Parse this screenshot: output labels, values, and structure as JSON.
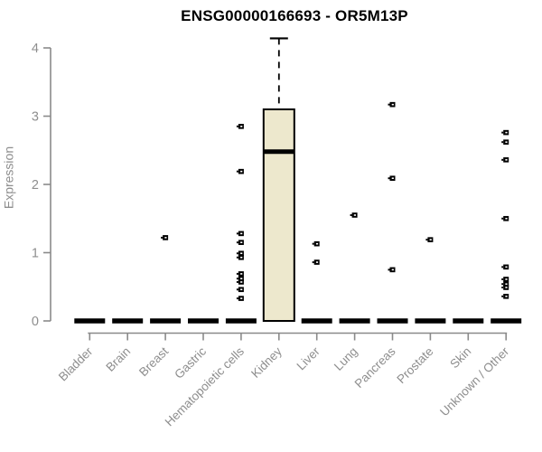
{
  "chart_data": {
    "type": "boxplot",
    "title": "ENSG00000166693 - OR5M13P",
    "xlabel": "",
    "ylabel": "Expression",
    "ylim": [
      0,
      4
    ],
    "yticks": [
      0,
      1,
      2,
      3,
      4
    ],
    "grid": false,
    "legend": "none",
    "colors": {
      "box_fill": "#EDE8CD",
      "box_line": "#000000",
      "axis": "#8A8A8A",
      "tick_label": "#8E8E8E",
      "title": "#000000",
      "background": "#FFFFFF"
    },
    "categories": [
      "Bladder",
      "Brain",
      "Breast",
      "Gastric",
      "Hematopoietic cells",
      "Kidney",
      "Liver",
      "Lung",
      "Pancreas",
      "Prostate",
      "Skin",
      "Unknown / Other"
    ],
    "series": [
      {
        "category": "Bladder",
        "q1": 0,
        "median": 0,
        "q3": 0,
        "whisker_low": 0,
        "whisker_high": 0,
        "outliers": []
      },
      {
        "category": "Brain",
        "q1": 0,
        "median": 0,
        "q3": 0,
        "whisker_low": 0,
        "whisker_high": 0,
        "outliers": []
      },
      {
        "category": "Breast",
        "q1": 0,
        "median": 0,
        "q3": 0,
        "whisker_low": 0,
        "whisker_high": 0,
        "outliers": [
          1.22
        ]
      },
      {
        "category": "Gastric",
        "q1": 0,
        "median": 0,
        "q3": 0,
        "whisker_low": 0,
        "whisker_high": 0,
        "outliers": []
      },
      {
        "category": "Hematopoietic cells",
        "q1": 0,
        "median": 0,
        "q3": 0,
        "whisker_low": 0,
        "whisker_high": 0,
        "outliers": [
          2.85,
          2.19,
          1.28,
          1.15,
          0.99,
          0.93,
          0.69,
          0.62,
          0.57,
          0.46,
          0.33
        ]
      },
      {
        "category": "Kidney",
        "q1": 0,
        "median": 2.48,
        "q3": 3.1,
        "whisker_low": 0,
        "whisker_high": 4.14,
        "outliers": []
      },
      {
        "category": "Liver",
        "q1": 0,
        "median": 0,
        "q3": 0,
        "whisker_low": 0,
        "whisker_high": 0,
        "outliers": [
          1.13,
          0.86
        ]
      },
      {
        "category": "Lung",
        "q1": 0,
        "median": 0,
        "q3": 0,
        "whisker_low": 0,
        "whisker_high": 0,
        "outliers": [
          1.55
        ]
      },
      {
        "category": "Pancreas",
        "q1": 0,
        "median": 0,
        "q3": 0,
        "whisker_low": 0,
        "whisker_high": 0,
        "outliers": [
          3.17,
          2.09,
          0.75
        ]
      },
      {
        "category": "Prostate",
        "q1": 0,
        "median": 0,
        "q3": 0,
        "whisker_low": 0,
        "whisker_high": 0,
        "outliers": [
          1.19
        ]
      },
      {
        "category": "Skin",
        "q1": 0,
        "median": 0,
        "q3": 0,
        "whisker_low": 0,
        "whisker_high": 0,
        "outliers": []
      },
      {
        "category": "Unknown / Other",
        "q1": 0,
        "median": 0,
        "q3": 0,
        "whisker_low": 0,
        "whisker_high": 0,
        "outliers": [
          2.76,
          2.62,
          2.36,
          1.5,
          0.79,
          0.61,
          0.54,
          0.49,
          0.36
        ]
      }
    ]
  }
}
